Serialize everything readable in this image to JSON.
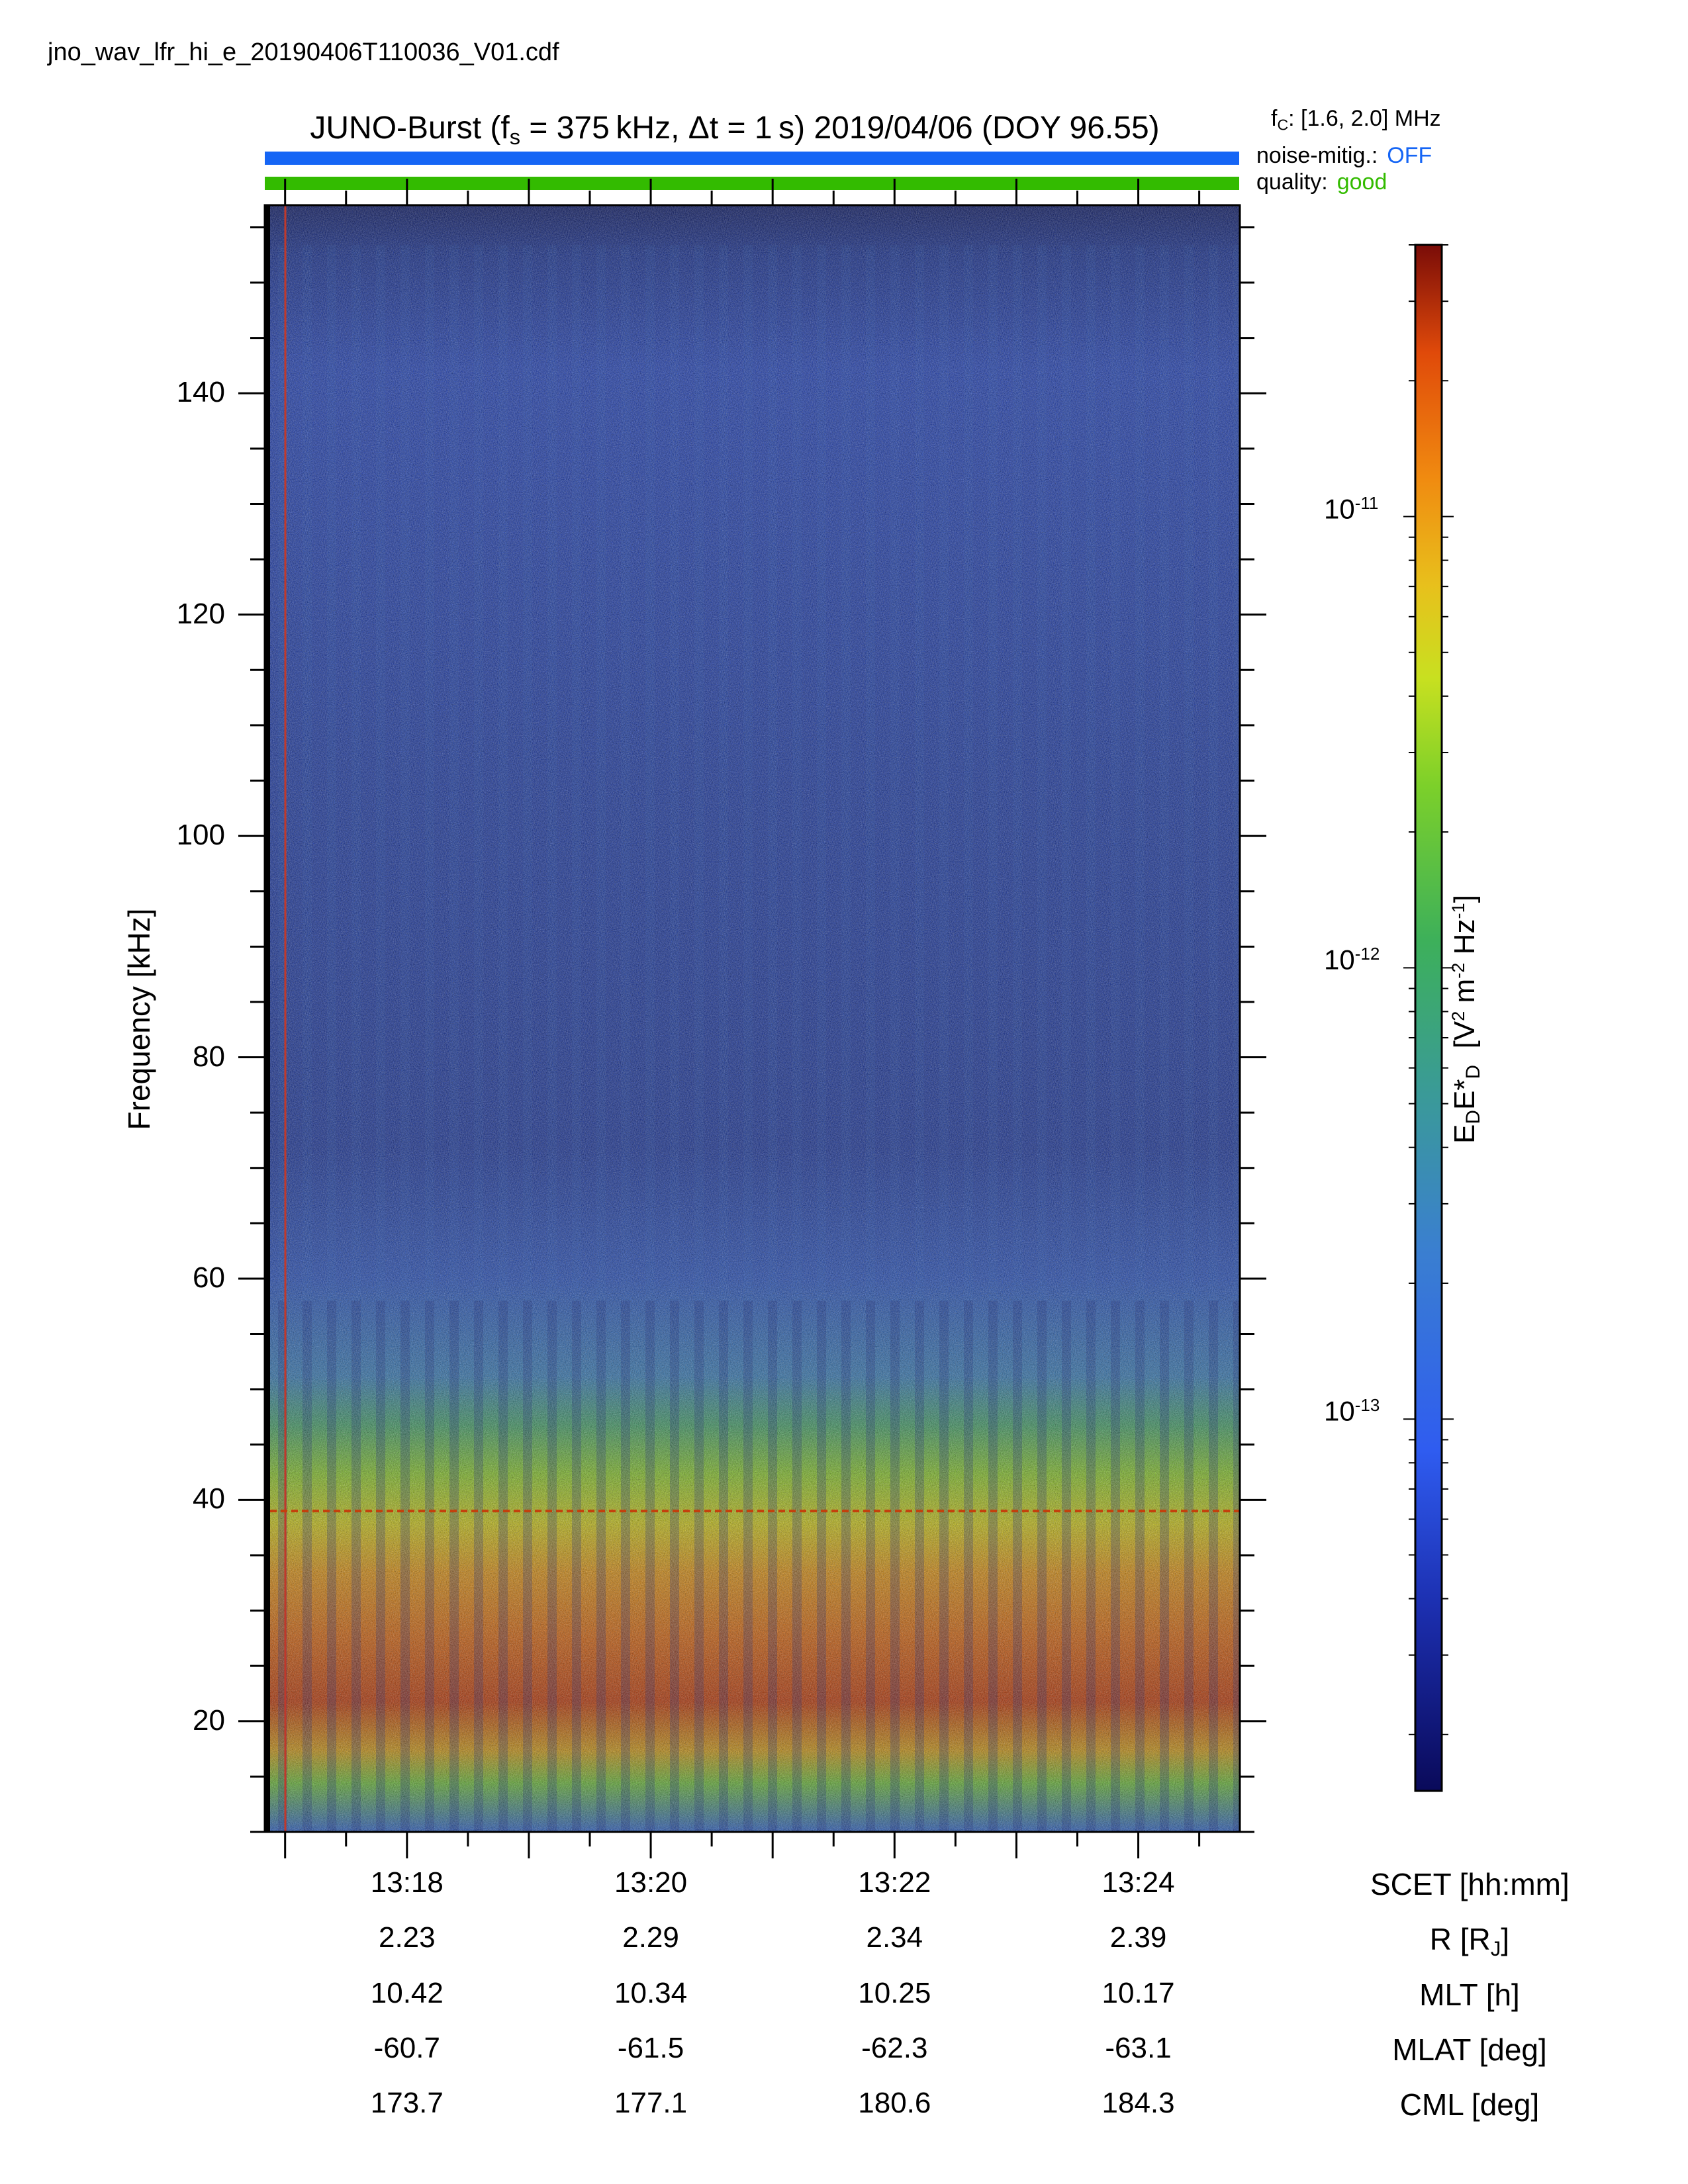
{
  "header": {
    "filename": "jno_wav_lfr_hi_e_20190406T110036_V01.cdf",
    "title_prefix": "JUNO-Burst (f",
    "title_sub": "s",
    "title_rest": " = 375 kHz, Δt = 1 s)  2019/04/06 (DOY 96.55)",
    "fc_prefix": "f",
    "fc_sub": "C",
    "fc_rest": ": [1.6, 2.0] MHz"
  },
  "status": {
    "noise_label": "noise-mitig.:",
    "noise_value": "OFF",
    "noise_color": "#1565f5",
    "quality_label": "quality:",
    "quality_value": "good",
    "quality_color": "#33bb00"
  },
  "chart_data": {
    "type": "heatmap",
    "xlabel": "SCET [hh:mm]",
    "ylabel": "Frequency [kHz]",
    "ylim": [
      10,
      157
    ],
    "yticks": [
      "140",
      "120",
      "100",
      "80",
      "60",
      "40",
      "20"
    ],
    "ytick_values": [
      140,
      120,
      100,
      80,
      60,
      40,
      20
    ],
    "xlim": [
      "13:16:50",
      "13:24:50"
    ],
    "x_ticks": [
      "13:18",
      "13:20",
      "13:22",
      "13:24"
    ],
    "ephemeris": [
      {
        "label_prefix": "R [R",
        "label_sub": "J",
        "label_suffix": "]",
        "values": [
          "2.23",
          "2.29",
          "2.34",
          "2.39"
        ]
      },
      {
        "label": "MLT [h]",
        "values": [
          "10.42",
          "10.34",
          "10.25",
          "10.17"
        ]
      },
      {
        "label": "MLAT [deg]",
        "values": [
          "-60.7",
          "-61.5",
          "-62.3",
          "-63.1"
        ]
      },
      {
        "label": "CML [deg]",
        "values": [
          "173.7",
          "177.1",
          "180.6",
          "184.3"
        ]
      }
    ],
    "colorbar": {
      "label_main": "E",
      "label_sub1": "D",
      "label_mid": "E*",
      "label_sub2": "D",
      "label_units_a": "  [V",
      "label_sup1": "2",
      "label_units_b": " m",
      "label_sup2": "-2",
      "label_units_c": " Hz",
      "label_sup3": "-1",
      "label_units_d": "]",
      "scale": "log",
      "ticks": [
        {
          "base": "10",
          "exp": "-11",
          "value": 1e-11
        },
        {
          "base": "10",
          "exp": "-12",
          "value": 1e-12
        },
        {
          "base": "10",
          "exp": "-13",
          "value": 1e-13
        }
      ],
      "range": [
        1.5e-14,
        4e-11
      ]
    },
    "features": {
      "harmonic_line_khz": 39,
      "intense_band_khz": [
        12,
        22
      ],
      "enhanced_emission_khz": [
        10,
        58
      ]
    }
  }
}
